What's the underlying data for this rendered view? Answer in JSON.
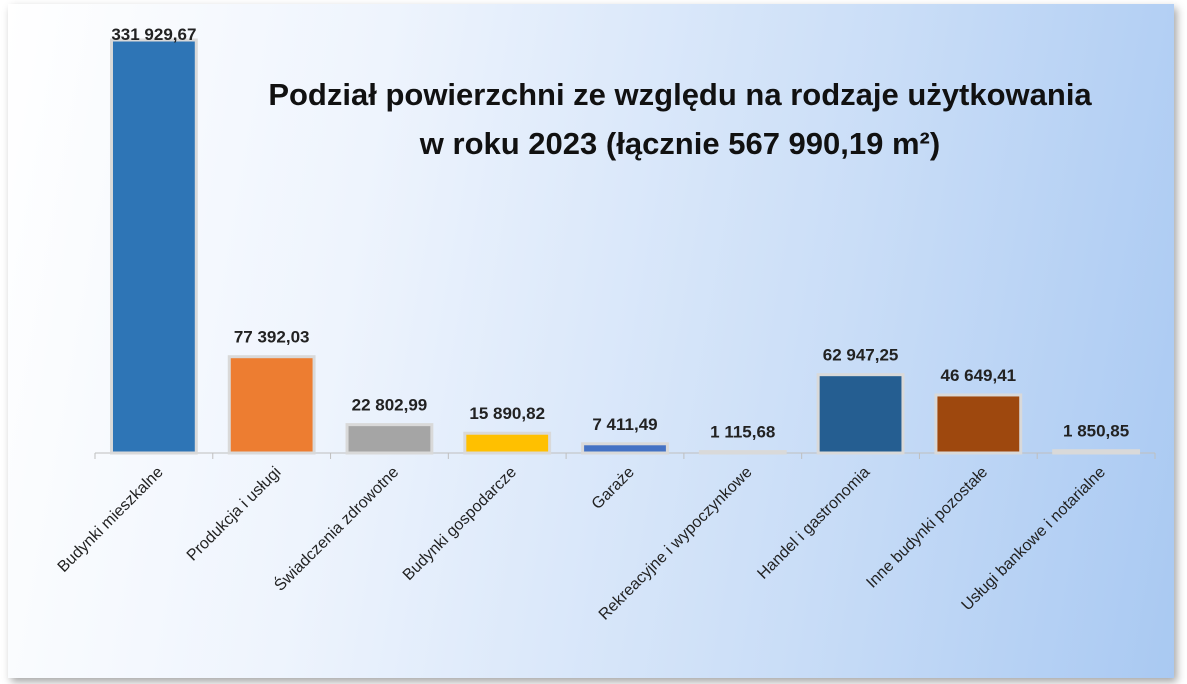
{
  "chart_data": {
    "type": "bar",
    "title": "Podział powierzchni ze względu na rodzaje użytkowania\nw roku 2023 (łącznie 567 990,19 m²)",
    "categories": [
      "Budynki mieszkalne",
      "Produkcja i usługi",
      "Świadczenia zdrowotne",
      "Budynki gospodarcze",
      "Garaże",
      "Rekreacyjne i wypoczynkowe",
      "Handel i gastronomia",
      "Inne budynki pozostałe",
      "Usługi bankowe i notarialne"
    ],
    "values": [
      331929.67,
      77392.03,
      22802.99,
      15890.82,
      7411.49,
      1115.68,
      62947.25,
      46649.41,
      1850.85
    ],
    "value_labels": [
      "331 929,67",
      "77 392,03",
      "22 802,99",
      "15 890,82",
      "7 411,49",
      "1 115,68",
      "62 947,25",
      "46 649,41",
      "1 850,85"
    ],
    "colors": [
      "#2e75b6",
      "#ed7d31",
      "#a5a5a5",
      "#ffc000",
      "#4472c4",
      "#e4ecf7",
      "#255e91",
      "#9e480e",
      "#e4ecf7"
    ]
  }
}
